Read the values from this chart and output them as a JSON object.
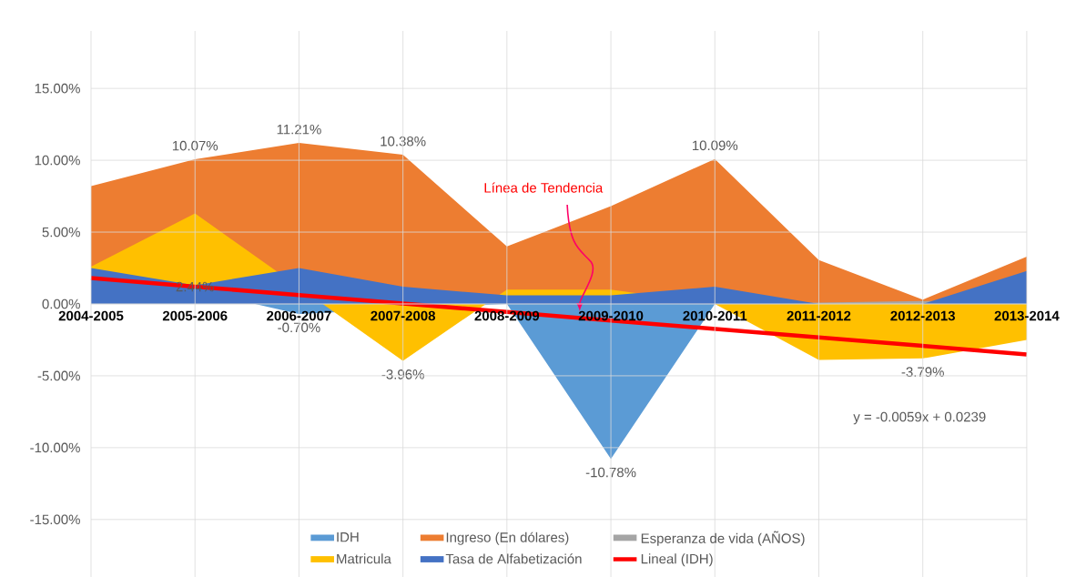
{
  "chart_data": {
    "type": "area",
    "categories": [
      "2004-2005",
      "2005-2006",
      "2006-2007",
      "2007-2008",
      "2008-2009",
      "2009-2010",
      "2010-2011",
      "2011-2012",
      "2012-2013",
      "2013-2014"
    ],
    "series": [
      {
        "name": "IDH",
        "color": "#5b9bd5",
        "values": [
          2.6,
          null,
          -0.7,
          null,
          0.0,
          -10.78,
          0.0,
          null,
          null,
          -0.3
        ]
      },
      {
        "name": "Ingreso (En dólares)",
        "color": "#ed7d31",
        "values": [
          8.2,
          10.07,
          11.21,
          10.38,
          4.0,
          6.8,
          10.09,
          3.05,
          0.3,
          3.3
        ]
      },
      {
        "name": "Esperanza de vida (AÑOS)",
        "color": "#a5a5a5",
        "values": [
          0.2,
          null,
          null,
          null,
          null,
          null,
          null,
          0.1,
          0.2,
          0.2
        ]
      },
      {
        "name": "Matricula",
        "color": "#ffc000",
        "values": [
          2.6,
          6.3,
          null,
          -3.96,
          1.0,
          1.0,
          0.0,
          -3.9,
          -3.79,
          -2.5
        ]
      },
      {
        "name": "Tasa de Alfabetización",
        "color": "#4472c4",
        "values": [
          2.5,
          1.3,
          2.5,
          1.2,
          0.6,
          0.6,
          1.2,
          0.0,
          0.0,
          2.3
        ]
      },
      {
        "name": "Lineal (IDH)",
        "color": "#ff0000",
        "type": "line",
        "values": [
          1.8,
          1.21,
          0.62,
          0.03,
          -0.56,
          -1.15,
          -1.74,
          -2.33,
          -2.92,
          -3.51
        ]
      }
    ],
    "ylim": [
      -19,
      19
    ],
    "yticks": [
      {
        "value": -15,
        "label": "-15.00%"
      },
      {
        "value": -10,
        "label": "-10.00%"
      },
      {
        "value": -5,
        "label": "-5.00%"
      },
      {
        "value": 0,
        "label": "0.00%"
      },
      {
        "value": 5,
        "label": "5.00%"
      },
      {
        "value": 10,
        "label": "10.00%"
      },
      {
        "value": 15,
        "label": "15.00%"
      }
    ],
    "grid": true,
    "legend": "bottom",
    "annotations": [
      {
        "text": "11.21%",
        "x": "2006-2007",
        "y": 11.21
      },
      {
        "text": "10.07%",
        "x": "2005-2006",
        "y": 10.07
      },
      {
        "text": "10.38%",
        "x": "2007-2008",
        "y": 10.38
      },
      {
        "text": "10.09%",
        "x": "2010-2011",
        "y": 10.09
      },
      "2.44%",
      {
        "text": "-0.70%",
        "x": "2006-2007",
        "y": -0.7
      },
      {
        "text": "-3.96%",
        "x": "2007-2008",
        "y": -3.96
      },
      {
        "text": "-10.78%",
        "x": "2009-2010",
        "y": -10.78
      },
      {
        "text": "-3.79%",
        "x": "2012-2013",
        "y": -3.79
      },
      "Línea de Tendencia",
      "y = -0.0059x + 0.0239"
    ]
  }
}
